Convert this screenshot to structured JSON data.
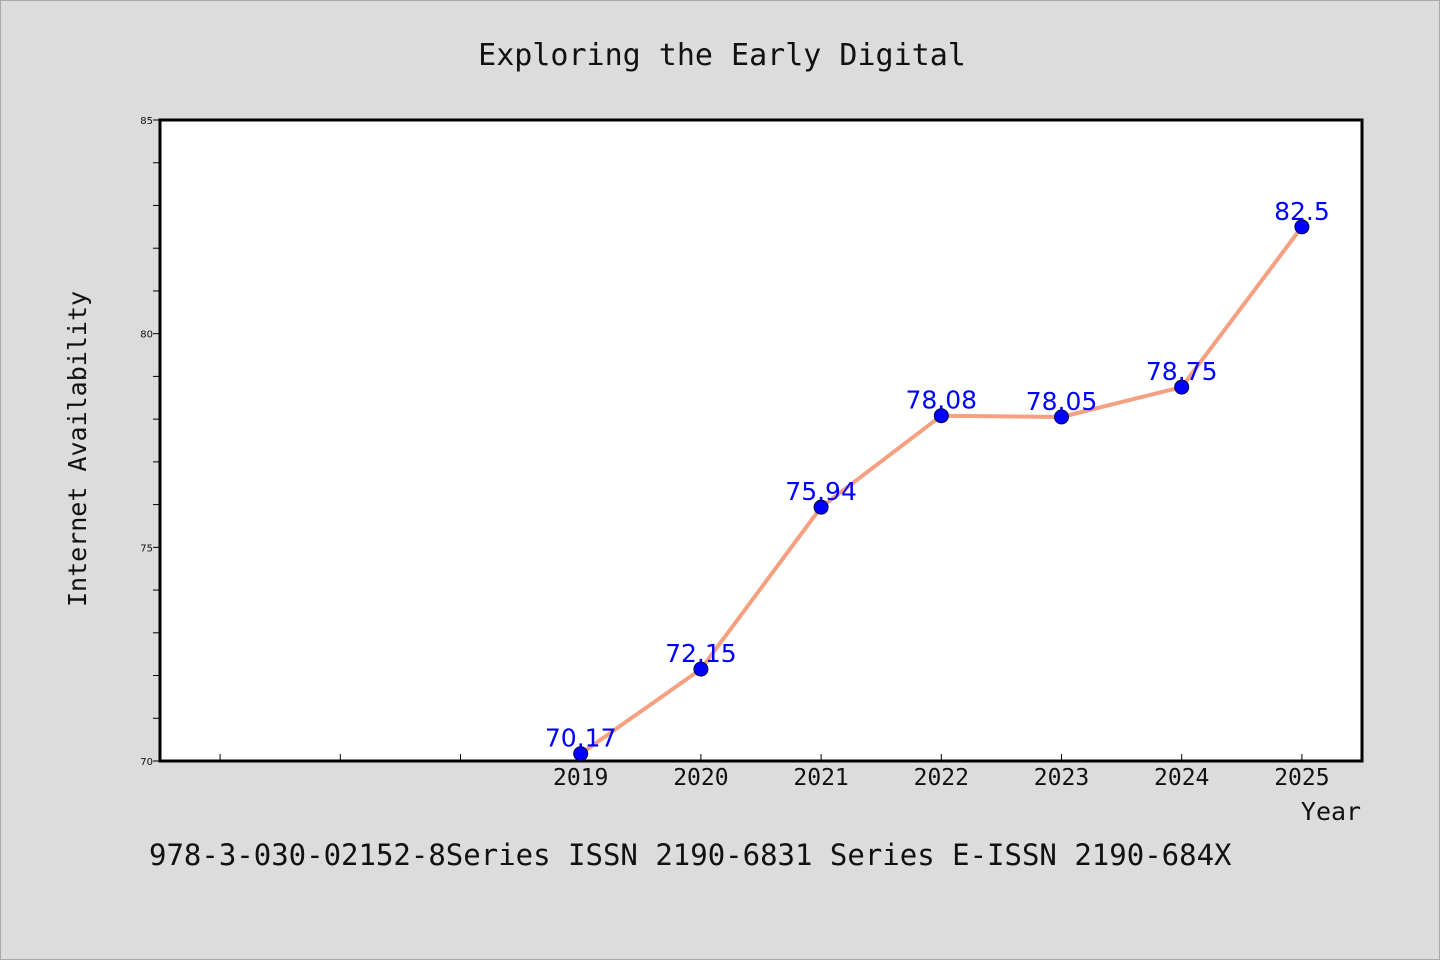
{
  "chart_data": {
    "type": "line",
    "title": "Exploring the Early Digital",
    "xlabel": "Year",
    "ylabel": "Internet Availability",
    "categories": [
      "2019",
      "2020",
      "2021",
      "2022",
      "2023",
      "2024",
      "2025"
    ],
    "x": [
      2019,
      2020,
      2021,
      2022,
      2023,
      2024,
      2025
    ],
    "values": [
      70.17,
      72.15,
      75.94,
      78.08,
      78.05,
      78.75,
      82.5
    ],
    "data_labels": [
      "70.17",
      "72.15",
      "75.94",
      "78.08",
      "78.05",
      "78.75",
      "82.5"
    ],
    "xlim": [
      2015.5,
      2025.5
    ],
    "ylim": [
      70,
      85
    ],
    "y_ticks": [
      70,
      75,
      80,
      85
    ],
    "y_tick_labels": [
      "70",
      "75",
      "80",
      "85"
    ],
    "grid": false,
    "line_color": "#f4a081",
    "marker_color": "#0000ff",
    "label_color": "#0000ff"
  },
  "footer": {
    "text": "978-3-030-02152-8Series ISSN 2190-6831 Series E-ISSN 2190-684X"
  }
}
